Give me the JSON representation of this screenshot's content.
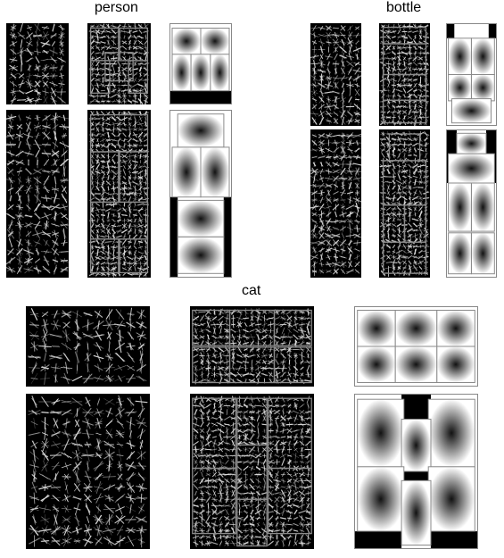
{
  "labels": {
    "person": "person",
    "bottle": "bottle",
    "cat": "cat"
  },
  "colors": {
    "background": "#ffffff",
    "hog_background": "#000000",
    "hog_stroke": "#d9d9d9",
    "part_outline": "#8a8a8a",
    "gaussian_center": "#111111",
    "gaussian_edge": "#ffffff"
  }
}
